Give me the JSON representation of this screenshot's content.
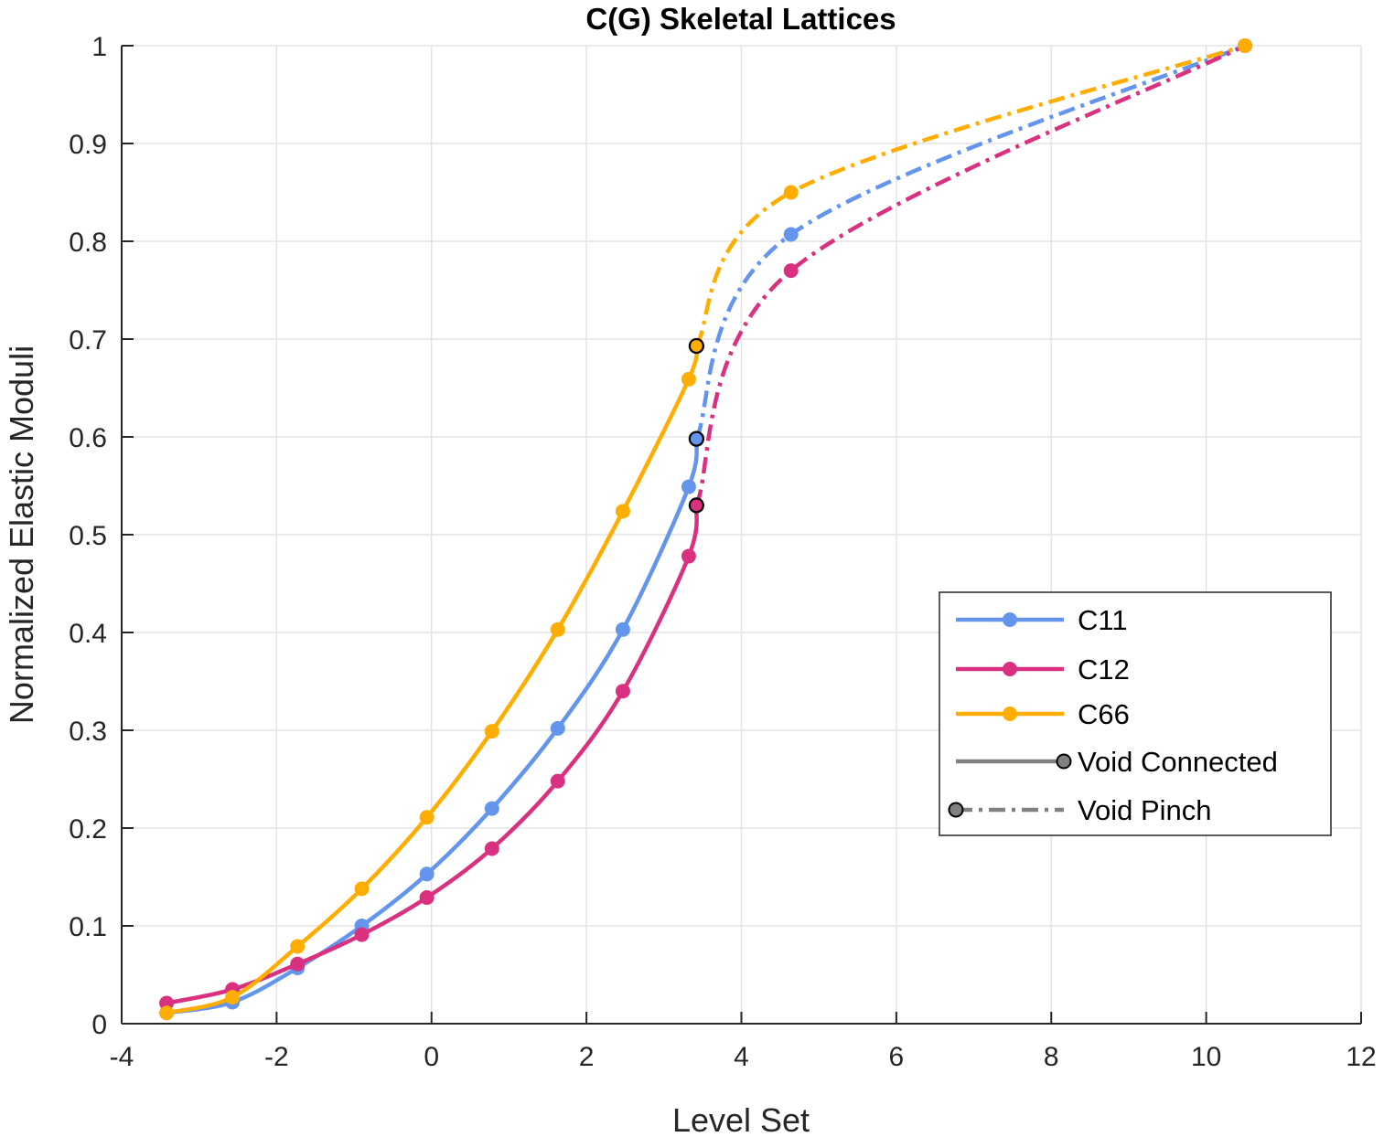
{
  "chart_data": {
    "type": "line",
    "title": "C(G) Skeletal Lattices",
    "xlabel": "Level Set",
    "ylabel": "Normalized Elastic Moduli",
    "xlim": [
      -4,
      12
    ],
    "ylim": [
      0,
      1
    ],
    "xticks": [
      -4,
      -2,
      0,
      2,
      4,
      6,
      8,
      10,
      12
    ],
    "yticks": [
      0,
      0.1,
      0.2,
      0.3,
      0.4,
      0.5,
      0.6,
      0.7,
      0.8,
      0.9,
      1
    ],
    "xtick_labels": [
      "-4",
      "-2",
      "0",
      "2",
      "4",
      "6",
      "8",
      "10",
      "12"
    ],
    "ytick_labels": [
      "0",
      "0.1",
      "0.2",
      "0.3",
      "0.4",
      "0.5",
      "0.6",
      "0.7",
      "0.8",
      "0.9",
      "1"
    ],
    "grid": true,
    "legend_position": "lower-right",
    "series": [
      {
        "name": "C11",
        "color": "#6495ED",
        "connected": {
          "x": [
            -3.42,
            -2.57,
            -1.73,
            -0.9,
            -0.06,
            0.78,
            1.63,
            2.47,
            3.32,
            3.42
          ],
          "y": [
            0.011,
            0.022,
            0.057,
            0.1,
            0.153,
            0.22,
            0.302,
            0.403,
            0.549,
            0.598
          ]
        },
        "pinch": {
          "x": [
            3.42,
            4.64,
            10.5
          ],
          "y": [
            0.598,
            0.807,
            1.0
          ]
        }
      },
      {
        "name": "C12",
        "color": "#D9307F",
        "connected": {
          "x": [
            -3.42,
            -2.57,
            -1.73,
            -0.9,
            -0.06,
            0.78,
            1.63,
            2.47,
            3.32,
            3.42
          ],
          "y": [
            0.021,
            0.035,
            0.061,
            0.091,
            0.129,
            0.179,
            0.248,
            0.34,
            0.478,
            0.53
          ]
        },
        "pinch": {
          "x": [
            3.42,
            4.64,
            10.5
          ],
          "y": [
            0.53,
            0.77,
            1.0
          ]
        }
      },
      {
        "name": "C66",
        "color": "#FFAD00",
        "connected": {
          "x": [
            -3.42,
            -2.57,
            -1.73,
            -0.9,
            -0.06,
            0.78,
            1.63,
            2.47,
            3.32,
            3.42
          ],
          "y": [
            0.011,
            0.027,
            0.079,
            0.138,
            0.211,
            0.299,
            0.403,
            0.524,
            0.659,
            0.693
          ]
        },
        "pinch": {
          "x": [
            3.42,
            4.64,
            10.5
          ],
          "y": [
            0.693,
            0.85,
            1.0
          ]
        }
      }
    ],
    "legend": [
      {
        "label": "C11",
        "color": "#6495ED",
        "style": "solid-dot"
      },
      {
        "label": "C12",
        "color": "#D9307F",
        "style": "solid-dot"
      },
      {
        "label": "C66",
        "color": "#FFAD00",
        "style": "solid-dot"
      },
      {
        "label": "Void Connected",
        "color": "#808080",
        "style": "solid-end-marker"
      },
      {
        "label": "Void Pinch",
        "color": "#808080",
        "style": "dashdot-start-marker"
      }
    ]
  }
}
